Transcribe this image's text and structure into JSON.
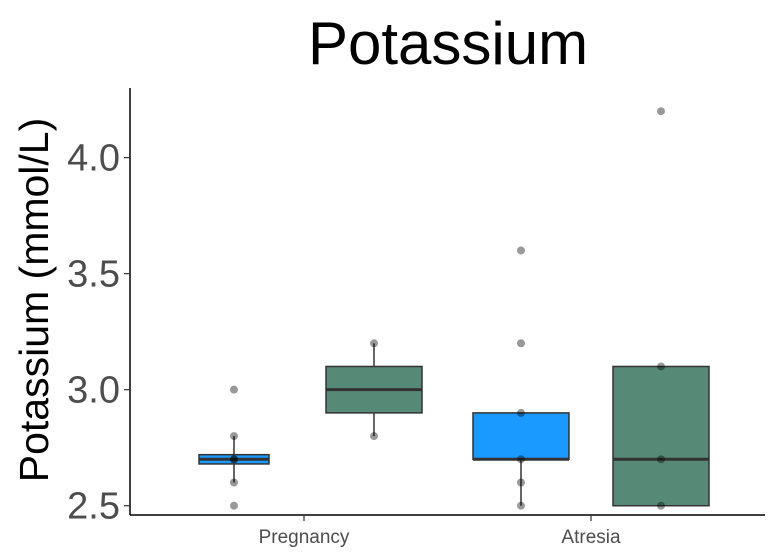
{
  "chart_data": {
    "type": "box",
    "title": "Potassium",
    "xlabel": "",
    "ylabel": "Potassium (mmol/L)",
    "categories": [
      "Pregnancy",
      "Atresia"
    ],
    "ylim": [
      2.46,
      4.3
    ],
    "yticks": [
      "2.5",
      "3.0",
      "3.5",
      "4.0"
    ],
    "grid": false,
    "legend": "none",
    "boxes": [
      {
        "category": "Pregnancy",
        "group_index": 0,
        "color": "#1a99ff",
        "q1": 2.68,
        "median": 2.7,
        "q3": 2.72,
        "whisker_low": 2.6,
        "whisker_high": 2.8,
        "points": [
          2.5,
          2.6,
          2.7,
          2.7,
          2.8,
          3.0
        ]
      },
      {
        "category": "Pregnancy",
        "group_index": 1,
        "color": "#568a77",
        "q1": 2.9,
        "median": 3.0,
        "q3": 3.1,
        "whisker_low": 2.8,
        "whisker_high": 3.2,
        "points": [
          2.8,
          3.2
        ]
      },
      {
        "category": "Atresia",
        "group_index": 0,
        "color": "#1a99ff",
        "q1": 2.7,
        "median": 2.7,
        "q3": 2.9,
        "whisker_low": 2.5,
        "whisker_high": 2.9,
        "points": [
          2.5,
          2.6,
          2.7,
          2.9,
          3.2,
          3.6
        ]
      },
      {
        "category": "Atresia",
        "group_index": 1,
        "color": "#568a77",
        "q1": 2.5,
        "median": 2.7,
        "q3": 3.1,
        "whisker_low": 2.5,
        "whisker_high": 3.1,
        "points": [
          2.5,
          2.7,
          3.1,
          4.2
        ]
      }
    ]
  }
}
